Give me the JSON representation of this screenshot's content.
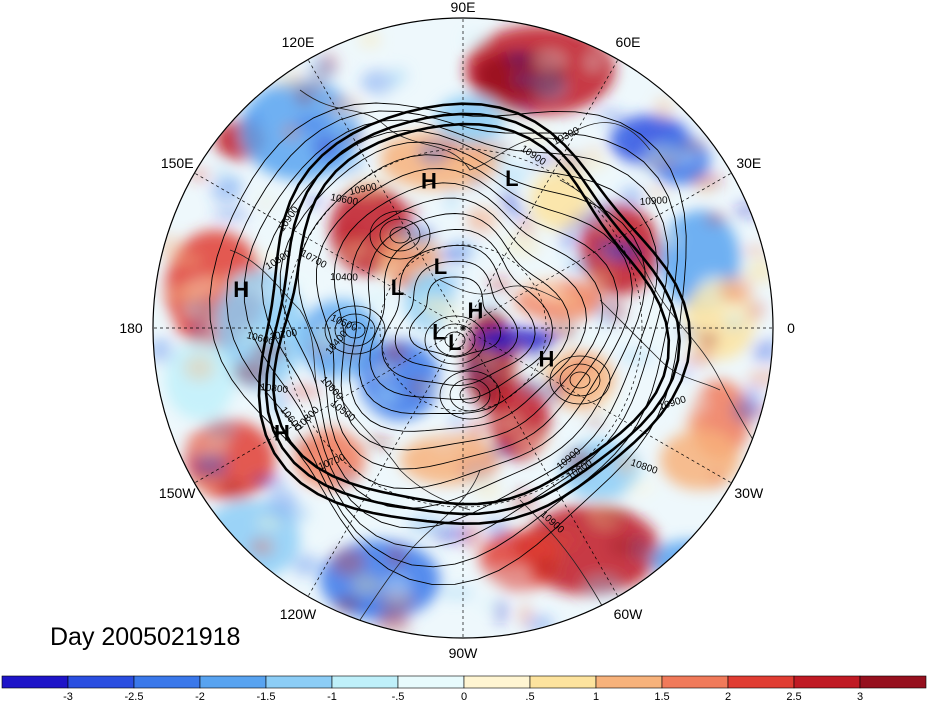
{
  "title": "Day 2005021918",
  "longitude_labels": [
    "90E",
    "60E",
    "30E",
    "0",
    "30W",
    "60W",
    "90W",
    "120W",
    "150W",
    "180",
    "150E",
    "120E"
  ],
  "pressure_centers": [
    {
      "type": "L",
      "lon": 72,
      "lat": 36
    },
    {
      "type": "H",
      "lon": 103,
      "lat": 38
    },
    {
      "type": "L",
      "lon": 110,
      "lat": 66
    },
    {
      "type": "H",
      "lon": 170,
      "lat": 18
    },
    {
      "type": "L",
      "lon": 148,
      "lat": 62
    },
    {
      "type": "H",
      "lon": -150,
      "lat": 22
    },
    {
      "type": "L",
      "lon": -172,
      "lat": 81
    },
    {
      "type": "H",
      "lon": 55,
      "lat": 82
    },
    {
      "type": "L",
      "lon": -120,
      "lat": 84
    },
    {
      "type": "H",
      "lon": -20,
      "lat": 58
    }
  ],
  "contour_labels": [
    "10900",
    "10800",
    "10700",
    "10600",
    "10500",
    "10400",
    "10300",
    "10900",
    "10800",
    "10900",
    "10800",
    "10700",
    "10400",
    "10500",
    "10600",
    "10900",
    "10900",
    "10800",
    "10700",
    "10600",
    "10800",
    "10900",
    "10600",
    "10900"
  ],
  "colorbar": {
    "tick_labels": [
      "-3",
      "-2.5",
      "-2",
      "-1.5",
      "-1",
      "-.5",
      "0",
      ".5",
      "1",
      "1.5",
      "2",
      "2.5",
      "3"
    ],
    "colors": [
      "#1e14c8",
      "#2a4ee0",
      "#3a78ea",
      "#58a3f0",
      "#8ccdf6",
      "#bff0fa",
      "#e8fbfd",
      "#fff5d2",
      "#fde39e",
      "#f7b27b",
      "#f07a5a",
      "#e03c32",
      "#c01a24",
      "#96101e"
    ]
  }
}
